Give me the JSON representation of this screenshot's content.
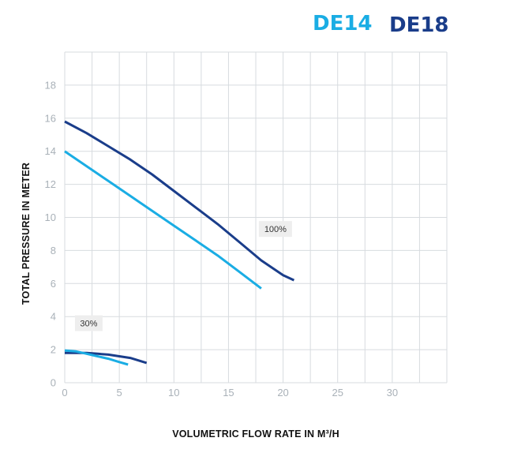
{
  "legend": {
    "de14": {
      "label": "DE14",
      "color": "#1aade4"
    },
    "de18": {
      "label": "DE18",
      "color": "#1a3d8a"
    }
  },
  "chart_data": {
    "type": "line",
    "xlabel": "VOLUMETRIC FLOW RATE IN M³/H",
    "ylabel": "TOTAL PRESSURE IN METER",
    "xlim": [
      0,
      35
    ],
    "ylim": [
      0,
      20
    ],
    "x_ticks": [
      0,
      5,
      10,
      15,
      20,
      25,
      30
    ],
    "y_ticks": [
      0,
      2,
      4,
      6,
      8,
      10,
      12,
      14,
      16,
      18
    ],
    "grid": true,
    "legend_position": "top-right",
    "series": [
      {
        "name": "DE18",
        "color": "#1a3d8a",
        "x": [
          0,
          2,
          4,
          6,
          8,
          10,
          12,
          14,
          16,
          18,
          20,
          21
        ],
        "y": [
          15.8,
          15.1,
          14.3,
          13.5,
          12.6,
          11.6,
          10.6,
          9.6,
          8.5,
          7.4,
          6.5,
          6.2
        ]
      },
      {
        "name": "DE14",
        "color": "#1aade4",
        "x": [
          0,
          2,
          4,
          6,
          8,
          10,
          12,
          14,
          16,
          18
        ],
        "y": [
          14.0,
          13.1,
          12.2,
          11.3,
          10.4,
          9.5,
          8.6,
          7.7,
          6.7,
          5.7
        ]
      },
      {
        "name": "DE18",
        "color": "#1a3d8a",
        "x": [
          0,
          1,
          2,
          3,
          4,
          5,
          6,
          7,
          7.5
        ],
        "y": [
          1.8,
          1.8,
          1.8,
          1.75,
          1.7,
          1.6,
          1.5,
          1.3,
          1.2
        ]
      },
      {
        "name": "DE14",
        "color": "#1aade4",
        "x": [
          0,
          1,
          2,
          3,
          4,
          5,
          5.8
        ],
        "y": [
          1.95,
          1.9,
          1.75,
          1.6,
          1.45,
          1.25,
          1.1
        ]
      }
    ],
    "annotations": [
      {
        "text": "100%",
        "x": 19.3,
        "y": 9.3
      },
      {
        "text": "30%",
        "x": 2.2,
        "y": 3.6
      }
    ]
  }
}
